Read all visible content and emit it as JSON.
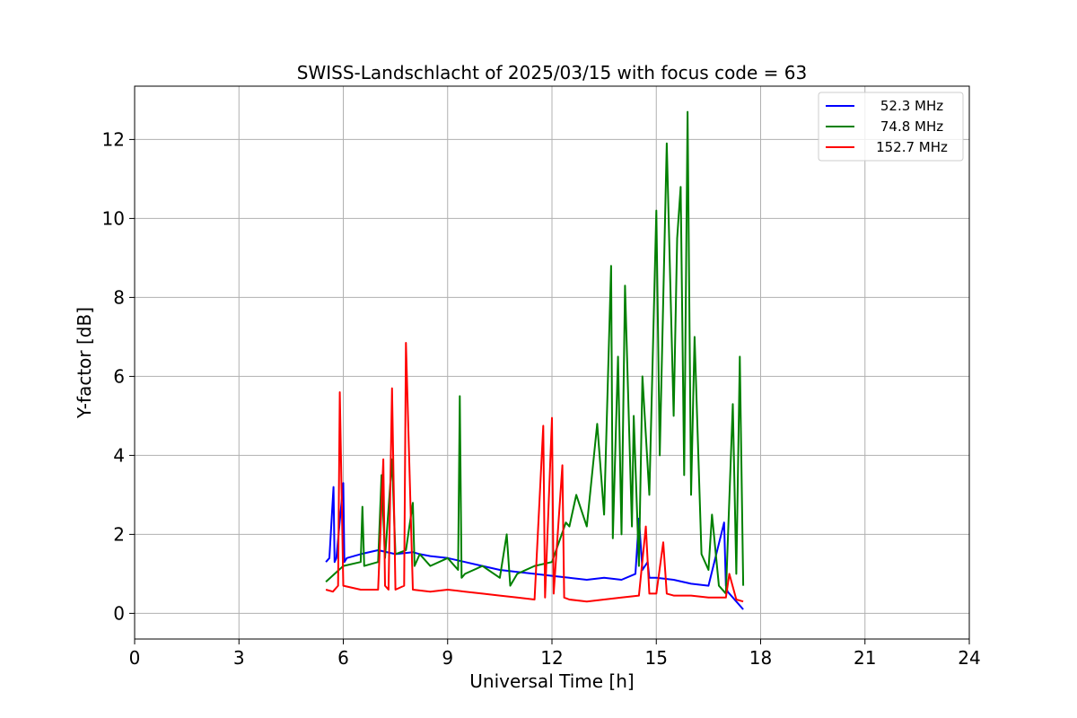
{
  "chart_data": {
    "type": "line",
    "title": "SWISS-Landschlacht of 2025/03/15 with focus code = 63",
    "xlabel": "Universal Time [h]",
    "ylabel": "Y-factor [dB]",
    "xlim": [
      0,
      24
    ],
    "ylim": [
      -0.65,
      13.35
    ],
    "xticks": [
      0,
      3,
      6,
      9,
      12,
      15,
      18,
      21,
      24
    ],
    "yticks": [
      0,
      2,
      4,
      6,
      8,
      10,
      12
    ],
    "grid": true,
    "legend_position": "top-right",
    "series": [
      {
        "name": " 52.3 MHz",
        "color": "#0000ff",
        "x": [
          5.5,
          5.6,
          5.72,
          5.75,
          5.8,
          6.0,
          6.03,
          6.1,
          6.5,
          7.0,
          7.5,
          8.0,
          8.2,
          8.5,
          9.0,
          9.5,
          10.0,
          10.5,
          11.0,
          11.5,
          12.0,
          12.5,
          13.0,
          13.5,
          14.0,
          14.4,
          14.5,
          14.6,
          14.75,
          14.8,
          15.0,
          15.5,
          16.0,
          16.5,
          16.95,
          17.0,
          17.05,
          17.3,
          17.5
        ],
        "y": [
          1.3,
          1.4,
          3.2,
          1.3,
          1.4,
          3.3,
          1.3,
          1.4,
          1.5,
          1.6,
          1.5,
          1.55,
          1.5,
          1.45,
          1.4,
          1.3,
          1.2,
          1.1,
          1.05,
          1.0,
          0.95,
          0.9,
          0.85,
          0.9,
          0.85,
          1.0,
          2.4,
          1.1,
          1.3,
          0.9,
          0.9,
          0.85,
          0.75,
          0.7,
          2.3,
          0.7,
          0.55,
          0.3,
          0.1
        ]
      },
      {
        "name": " 74.8 MHz",
        "color": "#008000",
        "x": [
          5.5,
          6.0,
          6.5,
          6.55,
          6.6,
          7.0,
          7.1,
          7.2,
          7.4,
          7.5,
          7.8,
          8.0,
          8.05,
          8.2,
          8.5,
          9.0,
          9.3,
          9.35,
          9.4,
          9.5,
          10.0,
          10.5,
          10.7,
          10.8,
          11.0,
          11.5,
          12.0,
          12.4,
          12.5,
          12.7,
          13.0,
          13.3,
          13.5,
          13.7,
          13.75,
          13.9,
          14.0,
          14.1,
          14.3,
          14.35,
          14.5,
          14.6,
          14.8,
          15.0,
          15.1,
          15.3,
          15.5,
          15.6,
          15.7,
          15.8,
          15.9,
          16.0,
          16.1,
          16.3,
          16.5,
          16.6,
          16.8,
          17.0,
          17.2,
          17.3,
          17.4,
          17.5
        ],
        "y": [
          0.8,
          1.2,
          1.3,
          2.7,
          1.2,
          1.3,
          3.5,
          1.4,
          3.9,
          1.5,
          1.6,
          2.8,
          1.2,
          1.5,
          1.2,
          1.4,
          1.1,
          5.5,
          0.9,
          1.0,
          1.2,
          0.9,
          2.0,
          0.7,
          1.0,
          1.2,
          1.3,
          2.3,
          2.2,
          3.0,
          2.2,
          4.8,
          2.5,
          8.8,
          1.9,
          6.5,
          2.0,
          8.3,
          2.2,
          5.0,
          1.2,
          6.0,
          3.0,
          10.2,
          4.0,
          11.9,
          5.0,
          9.5,
          10.8,
          3.5,
          12.7,
          3.0,
          7.0,
          1.5,
          1.1,
          2.5,
          0.7,
          0.5,
          5.3,
          1.0,
          6.5,
          0.7
        ]
      },
      {
        "name": "152.7 MHz",
        "color": "#ff0000",
        "x": [
          5.5,
          5.7,
          5.85,
          5.9,
          6.0,
          6.5,
          7.0,
          7.15,
          7.2,
          7.3,
          7.4,
          7.5,
          7.75,
          7.8,
          8.0,
          8.5,
          9.0,
          9.5,
          10.0,
          10.5,
          11.0,
          11.5,
          11.75,
          11.8,
          12.0,
          12.05,
          12.3,
          12.35,
          12.5,
          13.0,
          13.5,
          14.0,
          14.5,
          14.7,
          14.8,
          15.0,
          15.2,
          15.3,
          15.5,
          16.0,
          16.5,
          17.0,
          17.1,
          17.3,
          17.5
        ],
        "y": [
          0.6,
          0.55,
          0.7,
          5.6,
          0.7,
          0.6,
          0.6,
          3.9,
          0.7,
          0.6,
          5.7,
          0.6,
          0.7,
          6.85,
          0.6,
          0.55,
          0.6,
          0.55,
          0.5,
          0.45,
          0.4,
          0.35,
          4.75,
          0.4,
          4.95,
          0.5,
          3.75,
          0.4,
          0.35,
          0.3,
          0.35,
          0.4,
          0.45,
          2.2,
          0.5,
          0.5,
          1.8,
          0.5,
          0.45,
          0.45,
          0.4,
          0.4,
          1.0,
          0.35,
          0.3
        ]
      }
    ]
  }
}
